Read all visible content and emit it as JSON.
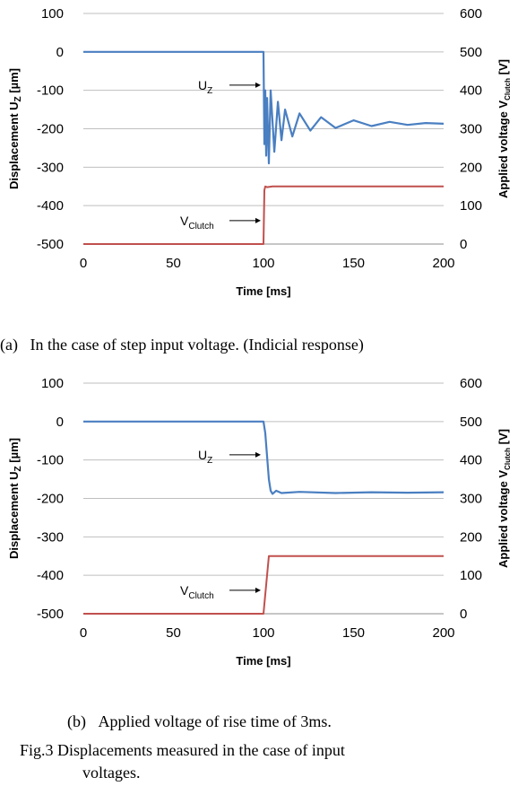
{
  "chart_data": [
    {
      "type": "line",
      "caption": "(a)   In the case of step input voltage. (Indicial response)",
      "xlabel": "Time [ms]",
      "ylabel_left": {
        "main": "Displacement U",
        "sub": "Z",
        "unit": " [µm]"
      },
      "ylabel_right": {
        "main": "Applied voltage V",
        "sub": "Clutch",
        "unit": " [V]"
      },
      "xlim": [
        0,
        200
      ],
      "ylim_left": [
        -500,
        100
      ],
      "ylim_right": [
        0,
        600
      ],
      "x_ticks": [
        "0",
        "50",
        "100",
        "150",
        "200"
      ],
      "y_left_ticks": [
        "100",
        "0",
        "-100",
        "-200",
        "-300",
        "-400",
        "-500"
      ],
      "y_right_ticks": [
        "600",
        "500",
        "400",
        "300",
        "200",
        "100",
        "0"
      ],
      "grid": "horizontal",
      "annotations": [
        {
          "main": "U",
          "sub": "Z",
          "target_series": "U_Z"
        },
        {
          "main": "V",
          "sub": "Clutch",
          "target_series": "V_Clutch"
        }
      ],
      "series": [
        {
          "name": "U_Z",
          "axis": "left",
          "color": "#4a7fc1",
          "x": [
            0,
            100,
            100.5,
            101,
            101.5,
            102,
            103,
            104,
            106,
            108,
            110,
            112,
            116,
            120,
            126,
            132,
            140,
            150,
            160,
            170,
            180,
            190,
            200
          ],
          "y": [
            0,
            0,
            -240,
            -100,
            -270,
            -120,
            -290,
            -100,
            -260,
            -130,
            -230,
            -150,
            -220,
            -160,
            -205,
            -170,
            -198,
            -178,
            -193,
            -182,
            -190,
            -185,
            -187
          ]
        },
        {
          "name": "V_Clutch",
          "axis": "right",
          "color": "#c0504d",
          "x": [
            0,
            100,
            100.5,
            101,
            102,
            105,
            200
          ],
          "y": [
            0,
            0,
            140,
            150,
            148,
            150,
            150
          ]
        }
      ]
    },
    {
      "type": "line",
      "caption": "(b)   Applied voltage of rise time of 3ms.",
      "xlabel": "Time [ms]",
      "ylabel_left": {
        "main": "Displacement U",
        "sub": "Z",
        "unit": " [µm]"
      },
      "ylabel_right": {
        "main": "Applied voltage V",
        "sub": "Clutch",
        "unit": " [V]"
      },
      "xlim": [
        0,
        200
      ],
      "ylim_left": [
        -500,
        100
      ],
      "ylim_right": [
        0,
        600
      ],
      "x_ticks": [
        "0",
        "50",
        "100",
        "150",
        "200"
      ],
      "y_left_ticks": [
        "100",
        "0",
        "-100",
        "-200",
        "-300",
        "-400",
        "-500"
      ],
      "y_right_ticks": [
        "600",
        "500",
        "400",
        "300",
        "200",
        "100",
        "0"
      ],
      "grid": "horizontal",
      "annotations": [
        {
          "main": "U",
          "sub": "Z",
          "target_series": "U_Z"
        },
        {
          "main": "V",
          "sub": "Clutch",
          "target_series": "V_Clutch"
        }
      ],
      "series": [
        {
          "name": "U_Z",
          "axis": "left",
          "color": "#4a7fc1",
          "x": [
            0,
            100,
            101,
            102,
            103,
            104,
            105,
            107,
            110,
            120,
            140,
            160,
            180,
            200
          ],
          "y": [
            0,
            0,
            -30,
            -90,
            -150,
            -180,
            -188,
            -180,
            -186,
            -183,
            -186,
            -184,
            -185,
            -184
          ]
        },
        {
          "name": "V_Clutch",
          "axis": "right",
          "color": "#c0504d",
          "x": [
            0,
            100,
            103,
            200
          ],
          "y": [
            0,
            0,
            150,
            150
          ]
        }
      ]
    }
  ],
  "figure_caption": {
    "line1": "Fig.3 Displacements measured in the case of input",
    "line2": "voltages."
  }
}
